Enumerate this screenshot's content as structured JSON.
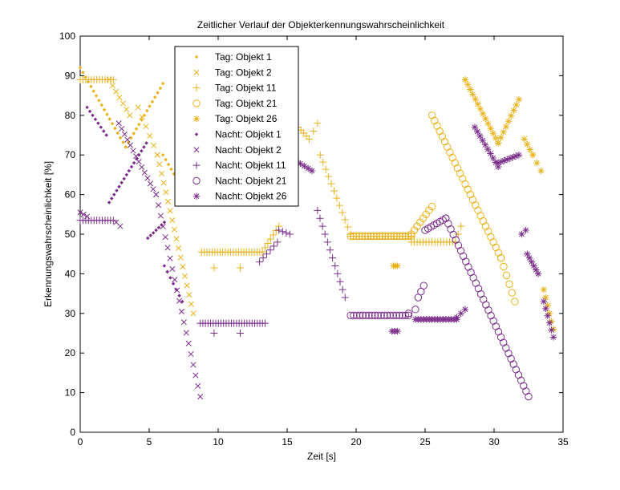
{
  "chart_data": {
    "type": "scatter",
    "title": "Zeitlicher Verlauf der Objekterkennungswahrscheinlichkeit",
    "xlabel": "Zeit [s]",
    "ylabel": "Erkennungswahrscheinlichkeit [%]",
    "xlim": [
      0,
      35
    ],
    "ylim": [
      0,
      100
    ],
    "xticks": [
      0,
      5,
      10,
      15,
      20,
      25,
      30,
      35
    ],
    "yticks": [
      0,
      10,
      20,
      30,
      40,
      50,
      60,
      70,
      80,
      90,
      100
    ],
    "grid": false,
    "legend_position": "top-left",
    "colors": {
      "tag": "#e8b21a",
      "nacht": "#7a2e8a"
    },
    "series": [
      {
        "name": "Tag: Objekt 1",
        "marker": "dot",
        "group": "tag",
        "segments": [
          {
            "x0": 0.0,
            "x1": 3.3,
            "y0": 92,
            "y1": 72,
            "n": 18
          },
          {
            "x0": 3.3,
            "x1": 6.0,
            "y0": 72,
            "y1": 88,
            "n": 15
          },
          {
            "x0": 6.0,
            "x1": 7.0,
            "y0": 70,
            "y1": 64,
            "n": 6
          }
        ]
      },
      {
        "name": "Tag: Objekt 2",
        "marker": "x",
        "group": "tag",
        "segments": [
          {
            "x0": 2.1,
            "x1": 3.6,
            "y0": 89,
            "y1": 80,
            "n": 7
          },
          {
            "x0": 4.2,
            "x1": 5.6,
            "y0": 82,
            "y1": 70,
            "n": 6
          },
          {
            "x0": 5.6,
            "x1": 8.2,
            "y0": 70,
            "y1": 30,
            "n": 18
          }
        ]
      },
      {
        "name": "Tag: Objekt 11",
        "marker": "plus",
        "group": "tag",
        "segments": [
          {
            "x0": 0.0,
            "x1": 2.4,
            "y0": 89,
            "y1": 89,
            "n": 13
          },
          {
            "x0": 8.8,
            "x1": 13.2,
            "y0": 45.5,
            "y1": 45.5,
            "n": 24
          },
          {
            "x0": 13.2,
            "x1": 14.4,
            "y0": 45.5,
            "y1": 52,
            "n": 7
          },
          {
            "x0": 9.7,
            "x1": 9.7,
            "y0": 41.5,
            "y1": 41.5,
            "n": 1
          },
          {
            "x0": 11.6,
            "x1": 11.6,
            "y0": 41.5,
            "y1": 41.5,
            "n": 1
          },
          {
            "x0": 15.8,
            "x1": 16.6,
            "y0": 77,
            "y1": 74,
            "n": 5
          },
          {
            "x0": 16.6,
            "x1": 17.2,
            "y0": 74,
            "y1": 78,
            "n": 3
          },
          {
            "x0": 17.4,
            "x1": 19.6,
            "y0": 70,
            "y1": 50,
            "n": 12
          },
          {
            "x0": 19.6,
            "x1": 24.0,
            "y0": 49.5,
            "y1": 49.5,
            "n": 22
          },
          {
            "x0": 24.0,
            "x1": 27.2,
            "y0": 48,
            "y1": 48,
            "n": 16
          },
          {
            "x0": 27.2,
            "x1": 27.6,
            "y0": 48,
            "y1": 52,
            "n": 3
          }
        ]
      },
      {
        "name": "Tag: Objekt 21",
        "marker": "circle",
        "group": "tag",
        "segments": [
          {
            "x0": 19.6,
            "x1": 24.0,
            "y0": 49.5,
            "y1": 49.5,
            "n": 22
          },
          {
            "x0": 24.0,
            "x1": 25.5,
            "y0": 50,
            "y1": 57,
            "n": 8
          },
          {
            "x0": 25.5,
            "x1": 30.5,
            "y0": 80,
            "y1": 44,
            "n": 28
          },
          {
            "x0": 30.5,
            "x1": 31.5,
            "y0": 44,
            "y1": 33,
            "n": 6
          }
        ]
      },
      {
        "name": "Tag: Objekt 26",
        "marker": "star",
        "group": "tag",
        "segments": [
          {
            "x0": 22.7,
            "x1": 23.0,
            "y0": 42,
            "y1": 42,
            "n": 3
          },
          {
            "x0": 27.9,
            "x1": 30.3,
            "y0": 89,
            "y1": 73,
            "n": 14
          },
          {
            "x0": 30.3,
            "x1": 31.8,
            "y0": 73,
            "y1": 84,
            "n": 9
          },
          {
            "x0": 32.2,
            "x1": 32.8,
            "y0": 74,
            "y1": 70,
            "n": 4
          },
          {
            "x0": 32.8,
            "x1": 33.4,
            "y0": 70,
            "y1": 66,
            "n": 3
          },
          {
            "x0": 33.6,
            "x1": 34.3,
            "y0": 36,
            "y1": 26,
            "n": 6
          }
        ]
      },
      {
        "name": "Nacht: Objekt 1",
        "marker": "dot",
        "group": "nacht",
        "segments": [
          {
            "x0": 0.5,
            "x1": 1.9,
            "y0": 82,
            "y1": 75,
            "n": 8
          },
          {
            "x0": 2.1,
            "x1": 4.8,
            "y0": 58,
            "y1": 73,
            "n": 16
          },
          {
            "x0": 4.9,
            "x1": 6.1,
            "y0": 49,
            "y1": 53,
            "n": 7
          },
          {
            "x0": 6.1,
            "x1": 7.4,
            "y0": 42,
            "y1": 33,
            "n": 7
          }
        ]
      },
      {
        "name": "Nacht: Objekt 2",
        "marker": "x",
        "group": "nacht",
        "segments": [
          {
            "x0": 0.0,
            "x1": 0.5,
            "y0": 55.5,
            "y1": 54.5,
            "n": 3
          },
          {
            "x0": 2.6,
            "x1": 2.9,
            "y0": 53,
            "y1": 52,
            "n": 2
          },
          {
            "x0": 2.8,
            "x1": 5.5,
            "y0": 78,
            "y1": 60,
            "n": 14
          },
          {
            "x0": 5.5,
            "x1": 8.7,
            "y0": 60,
            "y1": 9,
            "n": 20
          }
        ]
      },
      {
        "name": "Nacht: Objekt 11",
        "marker": "plus",
        "group": "nacht",
        "segments": [
          {
            "x0": 0.0,
            "x1": 2.4,
            "y0": 53.5,
            "y1": 53.5,
            "n": 13
          },
          {
            "x0": 8.7,
            "x1": 13.4,
            "y0": 27.5,
            "y1": 27.5,
            "n": 26
          },
          {
            "x0": 9.7,
            "x1": 9.7,
            "y0": 25,
            "y1": 25,
            "n": 1
          },
          {
            "x0": 11.6,
            "x1": 11.6,
            "y0": 25,
            "y1": 25,
            "n": 1
          },
          {
            "x0": 13.0,
            "x1": 14.3,
            "y0": 43,
            "y1": 48,
            "n": 6
          },
          {
            "x0": 14.4,
            "x1": 15.2,
            "y0": 51,
            "y1": 50,
            "n": 4
          },
          {
            "x0": 17.2,
            "x1": 19.2,
            "y0": 56,
            "y1": 34,
            "n": 12
          }
        ]
      },
      {
        "name": "Nacht: Objekt 21",
        "marker": "circle",
        "group": "nacht",
        "segments": [
          {
            "x0": 19.6,
            "x1": 23.8,
            "y0": 29.5,
            "y1": 29.5,
            "n": 20
          },
          {
            "x0": 23.8,
            "x1": 24.3,
            "y0": 30,
            "y1": 31,
            "n": 2
          },
          {
            "x0": 24.5,
            "x1": 24.9,
            "y0": 34,
            "y1": 37,
            "n": 3
          },
          {
            "x0": 25.0,
            "x1": 26.5,
            "y0": 51,
            "y1": 54,
            "n": 8
          },
          {
            "x0": 26.5,
            "x1": 32.5,
            "y0": 54,
            "y1": 9,
            "n": 34
          }
        ]
      },
      {
        "name": "Nacht: Objekt 26",
        "marker": "star",
        "group": "nacht",
        "segments": [
          {
            "x0": 15.4,
            "x1": 16.8,
            "y0": 69,
            "y1": 66,
            "n": 6
          },
          {
            "x0": 22.6,
            "x1": 23.0,
            "y0": 25.5,
            "y1": 25.5,
            "n": 3
          },
          {
            "x0": 24.3,
            "x1": 27.3,
            "y0": 28.5,
            "y1": 28.5,
            "n": 16
          },
          {
            "x0": 27.3,
            "x1": 27.9,
            "y0": 29,
            "y1": 31,
            "n": 3
          },
          {
            "x0": 28.6,
            "x1": 30.3,
            "y0": 77,
            "y1": 67,
            "n": 10
          },
          {
            "x0": 30.3,
            "x1": 31.8,
            "y0": 68,
            "y1": 70,
            "n": 8
          },
          {
            "x0": 32.0,
            "x1": 32.3,
            "y0": 50,
            "y1": 51,
            "n": 2
          },
          {
            "x0": 32.4,
            "x1": 33.2,
            "y0": 45,
            "y1": 40,
            "n": 6
          },
          {
            "x0": 33.6,
            "x1": 34.3,
            "y0": 33,
            "y1": 24,
            "n": 6
          }
        ]
      }
    ]
  }
}
